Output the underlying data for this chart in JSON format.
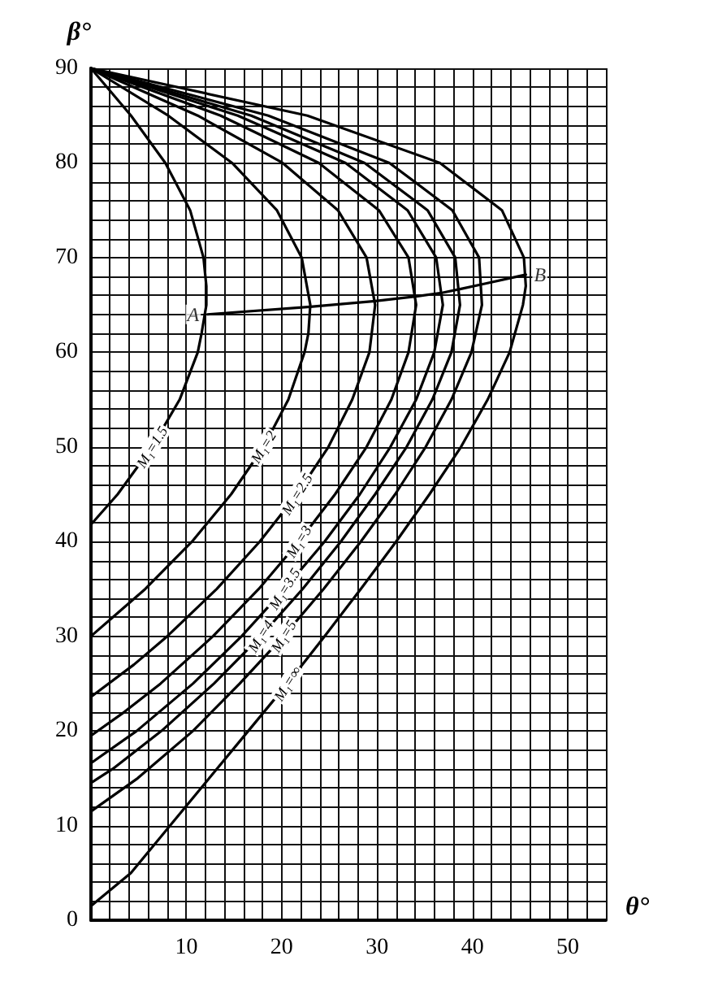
{
  "chart_data": {
    "type": "line",
    "xlabel": "θ°",
    "ylabel": "β°",
    "xlim": [
      0,
      54
    ],
    "ylim": [
      0,
      90
    ],
    "xticks": [
      {
        "value": 0,
        "label": null
      },
      {
        "value": 2,
        "label": null
      },
      {
        "value": 4,
        "label": null
      },
      {
        "value": 6,
        "label": null
      },
      {
        "value": 8,
        "label": null
      },
      10,
      {
        "value": 12,
        "label": null
      },
      {
        "value": 14,
        "label": null
      },
      {
        "value": 16,
        "label": null
      },
      {
        "value": 18,
        "label": null
      },
      20,
      {
        "value": 22,
        "label": null
      },
      {
        "value": 24,
        "label": null
      },
      {
        "value": 26,
        "label": null
      },
      {
        "value": 28,
        "label": null
      },
      30,
      {
        "value": 32,
        "label": null
      },
      {
        "value": 34,
        "label": null
      },
      {
        "value": 36,
        "label": null
      },
      {
        "value": 38,
        "label": null
      },
      40,
      {
        "value": 42,
        "label": null
      },
      {
        "value": 44,
        "label": null
      },
      {
        "value": 46,
        "label": null
      },
      {
        "value": 48,
        "label": null
      },
      50,
      {
        "value": 52,
        "label": null
      },
      {
        "value": 54,
        "label": null
      }
    ],
    "yticks": [
      0,
      {
        "value": 2,
        "label": null
      },
      {
        "value": 4,
        "label": null
      },
      {
        "value": 6,
        "label": null
      },
      {
        "value": 8,
        "label": null
      },
      10,
      {
        "value": 12,
        "label": null
      },
      {
        "value": 14,
        "label": null
      },
      {
        "value": 16,
        "label": null
      },
      {
        "value": 18,
        "label": null
      },
      20,
      {
        "value": 22,
        "label": null
      },
      {
        "value": 24,
        "label": null
      },
      {
        "value": 26,
        "label": null
      },
      {
        "value": 28,
        "label": null
      },
      30,
      {
        "value": 32,
        "label": null
      },
      {
        "value": 34,
        "label": null
      },
      {
        "value": 36,
        "label": null
      },
      {
        "value": 38,
        "label": null
      },
      40,
      {
        "value": 42,
        "label": null
      },
      {
        "value": 44,
        "label": null
      },
      {
        "value": 46,
        "label": null
      },
      {
        "value": 48,
        "label": null
      },
      50,
      {
        "value": 52,
        "label": null
      },
      {
        "value": 54,
        "label": null
      },
      {
        "value": 56,
        "label": null
      },
      {
        "value": 58,
        "label": null
      },
      60,
      {
        "value": 62,
        "label": null
      },
      {
        "value": 64,
        "label": null
      },
      {
        "value": 66,
        "label": null
      },
      {
        "value": 68,
        "label": null
      },
      70,
      {
        "value": 72,
        "label": null
      },
      {
        "value": 74,
        "label": null
      },
      {
        "value": 76,
        "label": null
      },
      {
        "value": 78,
        "label": null
      },
      80,
      {
        "value": 82,
        "label": null
      },
      {
        "value": 84,
        "label": null
      },
      {
        "value": 86,
        "label": null
      },
      {
        "value": 88,
        "label": null
      },
      90
    ],
    "grid": true,
    "legend": false,
    "marker": "none",
    "series": [
      {
        "name": "M₁=1.5",
        "color": "#000000",
        "x": [
          0,
          4.2,
          7.8,
          10.4,
          11.8,
          12.1,
          12.1,
          11.6,
          11.2,
          9.3,
          6.4,
          2.8,
          0
        ],
        "values": [
          90,
          85,
          80,
          75,
          70,
          67,
          65,
          62,
          60,
          55,
          50,
          45,
          41.8
        ]
      },
      {
        "name": "M₁=2",
        "color": "#000000",
        "x": [
          0,
          8.1,
          14.8,
          19.5,
          22.1,
          23.0,
          22.8,
          22.4,
          20.7,
          18.1,
          14.7,
          10.6,
          5.7,
          0
        ],
        "values": [
          90,
          85,
          80,
          75,
          70,
          65,
          62,
          60,
          55,
          50,
          45,
          40,
          35,
          30
        ]
      },
      {
        "name": "M₁=2.5",
        "color": "#000000",
        "x": [
          0,
          11.2,
          20.1,
          25.9,
          28.9,
          29.8,
          29.2,
          27.4,
          24.9,
          21.6,
          17.7,
          13.2,
          8.0,
          4.5,
          0
        ],
        "values": [
          90,
          85,
          80,
          75,
          70,
          65,
          60,
          55,
          50,
          45,
          40,
          35,
          30,
          27,
          23.6
        ]
      },
      {
        "name": "M₁=3",
        "color": "#000000",
        "x": [
          0,
          13.6,
          23.9,
          30.2,
          33.3,
          34.1,
          33.3,
          31.5,
          28.9,
          25.6,
          21.8,
          17.6,
          12.8,
          7.3,
          3.5,
          0
        ],
        "values": [
          90,
          85,
          80,
          75,
          70,
          65,
          60,
          55,
          50,
          45,
          40,
          35,
          30,
          25,
          22,
          19.5
        ]
      },
      {
        "name": "M₁=3.5",
        "color": "#000000",
        "x": [
          0,
          15.4,
          26.7,
          33.2,
          36.2,
          36.9,
          36.0,
          34.1,
          31.4,
          28.2,
          24.5,
          20.3,
          15.8,
          10.7,
          4.8,
          0
        ],
        "values": [
          90,
          85,
          80,
          75,
          70,
          65,
          60,
          55,
          50,
          45,
          40,
          35,
          30,
          25,
          20,
          16.6
        ]
      },
      {
        "name": "M₁=4",
        "color": "#000000",
        "x": [
          0,
          16.8,
          28.7,
          35.3,
          38.2,
          38.7,
          37.8,
          35.8,
          33.1,
          29.8,
          26.2,
          22.2,
          17.8,
          12.9,
          7.4,
          2.3,
          0
        ],
        "values": [
          90,
          85,
          80,
          75,
          70,
          65,
          60,
          55,
          50,
          45,
          40,
          35,
          30,
          25,
          20,
          16,
          14.5
        ]
      },
      {
        "name": "M₁=5",
        "color": "#000000",
        "x": [
          0,
          18.6,
          31.3,
          37.9,
          40.7,
          41.0,
          39.9,
          37.8,
          35.1,
          31.9,
          28.3,
          24.4,
          20.2,
          15.6,
          10.7,
          4.9,
          0
        ],
        "values": [
          90,
          85,
          80,
          75,
          70,
          65,
          60,
          55,
          50,
          45,
          40,
          35,
          30,
          25,
          20,
          15,
          11.5
        ]
      },
      {
        "name": "M₁=∞",
        "color": "#000000",
        "x": [
          0,
          22.7,
          36.6,
          43.1,
          45.4,
          45.6,
          45.3,
          43.9,
          41.6,
          38.8,
          35.5,
          32.0,
          28.3,
          24.5,
          20.6,
          16.5,
          12.4,
          8.3,
          4.2,
          0
        ],
        "values": [
          90,
          85,
          80,
          75,
          70,
          67,
          65,
          60,
          55,
          50,
          45,
          40,
          35,
          30,
          25,
          20,
          15,
          10,
          5,
          1.5
        ]
      },
      {
        "color": "#000000",
        "x": [
          12.2,
          23.0,
          29.8,
          34.1,
          36.9,
          38.8,
          41.1,
          45.6
        ],
        "values": [
          64,
          64.8,
          65.4,
          65.9,
          66.3,
          66.7,
          67.2,
          68.2
        ]
      }
    ],
    "annotations": [
      {
        "text": "A",
        "x": 12.2,
        "y": 64
      },
      {
        "text": "B",
        "x": 45.6,
        "y": 68.2
      }
    ]
  }
}
